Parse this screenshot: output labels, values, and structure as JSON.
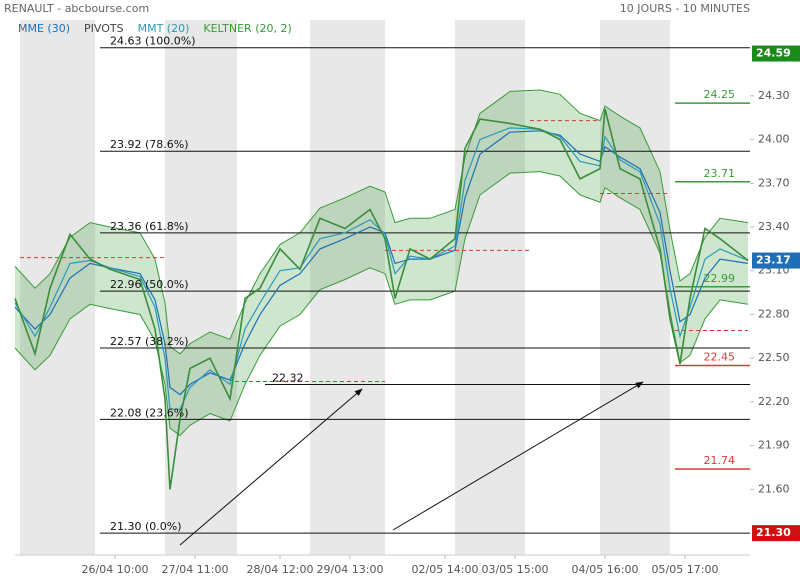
{
  "chart_data": {
    "type": "line",
    "title": "RENAULT - abcbourse.com",
    "subtitle": "10 JOURS - 10 MINUTES",
    "xlim": [
      0,
      147
    ],
    "ylim": [
      21.15,
      24.82
    ],
    "yticks": [
      {
        "value": 21.6,
        "label": "21.60"
      },
      {
        "value": 21.9,
        "label": "21.90"
      },
      {
        "value": 22.2,
        "label": "22.20"
      },
      {
        "value": 22.5,
        "label": "22.50"
      },
      {
        "value": 22.8,
        "label": "22.80"
      },
      {
        "value": 23.1,
        "label": "23.10"
      },
      {
        "value": 23.4,
        "label": "23.40"
      },
      {
        "value": 23.7,
        "label": "23.70"
      },
      {
        "value": 24.0,
        "label": "24.00"
      },
      {
        "value": 24.3,
        "label": "24.30"
      }
    ],
    "xticks": [
      {
        "value": 20,
        "label": "26/04 10:00"
      },
      {
        "value": 36,
        "label": "27/04 11:00"
      },
      {
        "value": 53,
        "label": "28/04 12:00"
      },
      {
        "value": 67,
        "label": "29/04 13:00"
      },
      {
        "value": 86,
        "label": "02/05 14:00"
      },
      {
        "value": 100,
        "label": "03/05 15:00"
      },
      {
        "value": 118,
        "label": "04/05 16:00"
      },
      {
        "value": 134,
        "label": "05/05 17:00"
      }
    ],
    "shaded_periods": [
      [
        1,
        16
      ],
      [
        30,
        44.4
      ],
      [
        59,
        74
      ],
      [
        88,
        102
      ],
      [
        117,
        131
      ]
    ],
    "price": {
      "color": "#3c8c3c",
      "x": [
        0,
        4,
        7,
        11,
        15,
        19,
        25,
        28,
        30,
        31,
        33,
        35,
        39,
        43,
        46,
        49,
        53,
        57,
        61,
        66,
        71,
        74,
        76,
        79,
        83,
        88,
        90,
        93,
        99,
        105,
        109,
        113,
        117,
        118,
        121,
        125,
        129,
        131,
        133,
        135,
        138,
        141,
        146.6
      ],
      "values": [
        22.91,
        22.53,
        22.98,
        23.35,
        23.18,
        23.11,
        23.04,
        22.7,
        22.22,
        21.6,
        22.08,
        22.43,
        22.5,
        22.22,
        22.91,
        22.98,
        23.25,
        23.11,
        23.46,
        23.39,
        23.52,
        23.32,
        22.91,
        23.25,
        23.18,
        23.32,
        23.94,
        24.14,
        24.11,
        24.07,
        24.0,
        23.73,
        23.8,
        24.21,
        23.8,
        23.73,
        23.25,
        22.77,
        22.46,
        22.91,
        23.39,
        23.32,
        23.17
      ]
    },
    "series": [
      {
        "name": "MME (30)",
        "color": "#1e6fb5",
        "values": [
          22.85,
          22.7,
          22.8,
          23.05,
          23.15,
          23.12,
          23.08,
          22.9,
          22.6,
          22.3,
          22.25,
          22.32,
          22.4,
          22.35,
          22.6,
          22.8,
          23.0,
          23.08,
          23.25,
          23.32,
          23.4,
          23.36,
          23.15,
          23.18,
          23.18,
          23.24,
          23.6,
          23.9,
          24.05,
          24.06,
          24.03,
          23.9,
          23.85,
          23.95,
          23.88,
          23.8,
          23.5,
          23.1,
          22.75,
          22.8,
          23.05,
          23.18,
          23.15
        ]
      },
      {
        "name": "PIVOTS",
        "color": "#d63a3a",
        "segments": [
          {
            "x": [
              1,
              30
            ],
            "value": 23.19
          },
          {
            "x": [
              44,
              74
            ],
            "value": 22.34
          },
          {
            "x": [
              74,
              103
            ],
            "value": 23.24
          },
          {
            "x": [
              103,
              117
            ],
            "value": 24.13
          },
          {
            "x": [
              117,
              131
            ],
            "value": 23.63
          },
          {
            "x": [
              132,
              146.6
            ],
            "value": 22.69
          }
        ]
      },
      {
        "name": "MMT (20)",
        "color": "#2a9ab8",
        "values": [
          22.88,
          22.65,
          22.85,
          23.15,
          23.17,
          23.12,
          23.06,
          22.85,
          22.5,
          22.15,
          22.15,
          22.3,
          22.42,
          22.32,
          22.7,
          22.88,
          23.1,
          23.12,
          23.32,
          23.36,
          23.45,
          23.35,
          23.08,
          23.2,
          23.18,
          23.27,
          23.72,
          24.0,
          24.08,
          24.07,
          24.02,
          23.85,
          23.82,
          24.02,
          23.86,
          23.78,
          23.42,
          22.98,
          22.65,
          22.85,
          23.18,
          23.25,
          23.17
        ]
      },
      {
        "name": "KELTNER (20, 2)",
        "color": "#3a9a3a",
        "upper": [
          23.13,
          22.98,
          23.08,
          23.33,
          23.43,
          23.4,
          23.36,
          23.18,
          22.88,
          22.58,
          22.53,
          22.6,
          22.68,
          22.63,
          22.88,
          23.08,
          23.28,
          23.36,
          23.53,
          23.6,
          23.68,
          23.64,
          23.43,
          23.46,
          23.46,
          23.52,
          23.88,
          24.18,
          24.33,
          24.34,
          24.31,
          24.18,
          24.13,
          24.23,
          24.16,
          24.08,
          23.78,
          23.38,
          23.03,
          23.08,
          23.33,
          23.46,
          23.43
        ],
        "lower": [
          22.57,
          22.42,
          22.52,
          22.77,
          22.87,
          22.84,
          22.8,
          22.62,
          22.32,
          22.02,
          21.97,
          22.04,
          22.12,
          22.07,
          22.32,
          22.52,
          22.72,
          22.8,
          22.97,
          23.04,
          23.12,
          23.08,
          22.87,
          22.9,
          22.9,
          22.96,
          23.32,
          23.62,
          23.77,
          23.78,
          23.75,
          23.62,
          23.57,
          23.67,
          23.6,
          23.52,
          23.22,
          22.82,
          22.47,
          22.52,
          22.77,
          22.9,
          22.87
        ]
      }
    ],
    "fib_levels": [
      {
        "value": 24.63,
        "label": "24.63  (100.0%)"
      },
      {
        "value": 23.92,
        "label": "23.92  (78.6%)"
      },
      {
        "value": 23.36,
        "label": "23.36  (61.8%)"
      },
      {
        "value": 22.96,
        "label": "22.96  (50.0%)"
      },
      {
        "value": 22.57,
        "label": "22.57  (38.2%)"
      },
      {
        "value": 22.08,
        "label": "22.08  (23.6%)"
      },
      {
        "value": 21.3,
        "label": "21.30  (0.0%)"
      }
    ],
    "support": 22.32,
    "levels": [
      {
        "value": 24.25,
        "color": "#3a9a3a"
      },
      {
        "value": 23.71,
        "color": "#3a9a3a"
      },
      {
        "value": 22.99,
        "color": "#3a9a3a"
      },
      {
        "value": 22.45,
        "color": "#d63a3a"
      },
      {
        "value": 21.74,
        "color": "#d63a3a"
      }
    ],
    "price_tags": [
      {
        "value": 24.59,
        "color": "#1a8a1a"
      },
      {
        "value": 23.17,
        "color": "#1e6fb5"
      },
      {
        "value": {
          "value": 21.3,
          "label": "21.30"
        },
        "color": "#cc1111"
      }
    ]
  }
}
